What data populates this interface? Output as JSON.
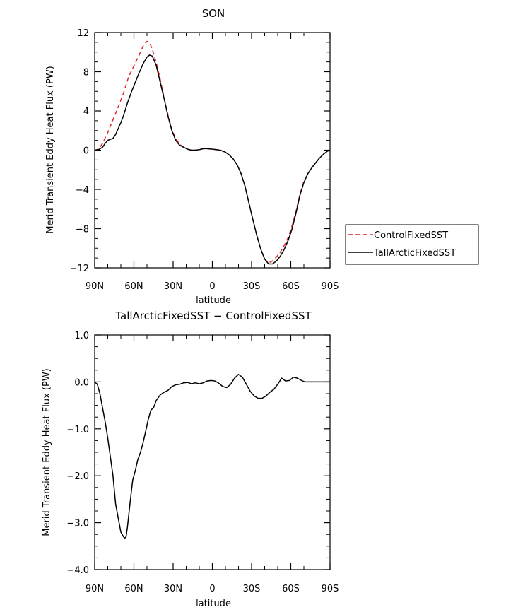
{
  "chart_data": [
    {
      "type": "line",
      "title": "SON",
      "xlabel": "latitude",
      "ylabel": "Merid Transient Eddy Heat Flux (PW)",
      "xlim": [
        90,
        -90
      ],
      "ylim": [
        -12,
        12
      ],
      "x_ticks": [
        90,
        60,
        30,
        0,
        -30,
        -60,
        -90
      ],
      "x_tick_labels": [
        "90N",
        "60N",
        "30N",
        "0",
        "30S",
        "60S",
        "90S"
      ],
      "y_ticks": [
        -12,
        -8,
        -4,
        0,
        4,
        8,
        12
      ],
      "y_tick_labels": [
        "−12",
        "−8",
        "−4",
        "0",
        "4",
        "8",
        "12"
      ],
      "legend": "outside-right",
      "series": [
        {
          "name": "ControlFixedSST",
          "color": "#e0252a",
          "dash": "dashed",
          "x": [
            90,
            87,
            84,
            80,
            76,
            72,
            68,
            64,
            60,
            56,
            53,
            50,
            48,
            46,
            43,
            40,
            37,
            34,
            31,
            28,
            25,
            22,
            19,
            16,
            13,
            10,
            7,
            4,
            0,
            -3,
            -6,
            -10,
            -13,
            -16,
            -19,
            -22,
            -25,
            -28,
            -31,
            -34,
            -37,
            -40,
            -43,
            -46,
            -49,
            -52,
            -55,
            -58,
            -61,
            -64,
            -67,
            -70,
            -73,
            -76,
            -79,
            -82,
            -85,
            -88,
            -90
          ],
          "values": [
            0.0,
            0.1,
            0.7,
            1.8,
            3.1,
            4.4,
            5.8,
            7.5,
            8.6,
            9.7,
            10.6,
            11.1,
            11.0,
            10.3,
            9.0,
            7.3,
            5.4,
            3.6,
            2.1,
            1.2,
            0.6,
            0.3,
            0.1,
            0.0,
            0.0,
            0.05,
            0.15,
            0.15,
            0.1,
            0.05,
            0.0,
            -0.2,
            -0.5,
            -0.9,
            -1.5,
            -2.4,
            -3.7,
            -5.4,
            -7.1,
            -8.7,
            -10.1,
            -11.1,
            -11.5,
            -11.3,
            -10.9,
            -10.4,
            -9.7,
            -8.9,
            -7.7,
            -6.2,
            -4.5,
            -3.2,
            -2.4,
            -1.8,
            -1.3,
            -0.8,
            -0.4,
            -0.1,
            0.0
          ]
        },
        {
          "name": "TallArcticFixedSST",
          "color": "#000000",
          "dash": "solid",
          "x": [
            90,
            87,
            84,
            82,
            80,
            78,
            76,
            74,
            72,
            70,
            68,
            65,
            62,
            59,
            56,
            53,
            50,
            48,
            46,
            43,
            40,
            37,
            34,
            31,
            28,
            25,
            22,
            19,
            16,
            13,
            10,
            7,
            4,
            0,
            -3,
            -6,
            -10,
            -13,
            -16,
            -19,
            -22,
            -25,
            -28,
            -31,
            -34,
            -37,
            -40,
            -43,
            -46,
            -49,
            -52,
            -55,
            -58,
            -61,
            -64,
            -67,
            -70,
            -73,
            -76,
            -79,
            -82,
            -85,
            -88,
            -90
          ],
          "values": [
            0.0,
            0.05,
            0.3,
            0.7,
            1.0,
            1.1,
            1.2,
            1.6,
            2.2,
            2.8,
            3.5,
            4.8,
            5.9,
            6.9,
            7.9,
            8.8,
            9.5,
            9.7,
            9.6,
            8.7,
            7.0,
            5.3,
            3.5,
            2.0,
            1.0,
            0.5,
            0.3,
            0.1,
            0.0,
            0.0,
            0.05,
            0.15,
            0.15,
            0.1,
            0.05,
            0.0,
            -0.2,
            -0.5,
            -0.9,
            -1.5,
            -2.4,
            -3.7,
            -5.4,
            -7.1,
            -8.7,
            -10.1,
            -11.1,
            -11.6,
            -11.6,
            -11.3,
            -10.8,
            -10.1,
            -9.2,
            -8.0,
            -6.4,
            -4.6,
            -3.3,
            -2.4,
            -1.8,
            -1.3,
            -0.8,
            -0.4,
            -0.1,
            0.0
          ]
        }
      ]
    },
    {
      "type": "line",
      "title": "TallArcticFixedSST − ControlFixedSST",
      "xlabel": "latitude",
      "ylabel": "Merid Transient Eddy Heat Flux (PW)",
      "xlim": [
        90,
        -90
      ],
      "ylim": [
        -4.0,
        1.0
      ],
      "x_ticks": [
        90,
        60,
        30,
        0,
        -30,
        -60,
        -90
      ],
      "x_tick_labels": [
        "90N",
        "60N",
        "30N",
        "0",
        "30S",
        "60S",
        "90S"
      ],
      "y_ticks": [
        -4.0,
        -3.0,
        -2.0,
        -1.0,
        0.0,
        1.0
      ],
      "y_tick_labels": [
        "−4.0",
        "−3.0",
        "−2.0",
        "−1.0",
        "0.0",
        "1.0"
      ],
      "series": [
        {
          "color": "#000000",
          "dash": "solid",
          "x": [
            90,
            88,
            86,
            84,
            82,
            80,
            78,
            76,
            74,
            72,
            70,
            68,
            67,
            66,
            65,
            63,
            61,
            59,
            57,
            55,
            53,
            51,
            49,
            47,
            45,
            43,
            40,
            37,
            34,
            31,
            28,
            25,
            22,
            19,
            16,
            13,
            10,
            7,
            4,
            1,
            -2,
            -5,
            -8,
            -11,
            -14,
            -17,
            -20,
            -23,
            -26,
            -29,
            -32,
            -35,
            -38,
            -41,
            -44,
            -47,
            -50,
            -53,
            -56,
            -59,
            -62,
            -65,
            -67,
            -69,
            -71,
            -73,
            -75,
            -77,
            -79,
            -81,
            -83,
            -85,
            -87,
            -90
          ],
          "values": [
            0.0,
            -0.05,
            -0.25,
            -0.55,
            -0.85,
            -1.2,
            -1.6,
            -2.0,
            -2.6,
            -2.9,
            -3.2,
            -3.3,
            -3.33,
            -3.3,
            -3.1,
            -2.6,
            -2.1,
            -1.9,
            -1.65,
            -1.5,
            -1.3,
            -1.05,
            -0.8,
            -0.6,
            -0.55,
            -0.4,
            -0.28,
            -0.22,
            -0.18,
            -0.1,
            -0.06,
            -0.05,
            -0.02,
            -0.01,
            -0.04,
            -0.02,
            -0.04,
            -0.02,
            0.02,
            0.03,
            0.02,
            -0.03,
            -0.1,
            -0.12,
            -0.05,
            0.08,
            0.16,
            0.1,
            -0.05,
            -0.2,
            -0.3,
            -0.35,
            -0.35,
            -0.3,
            -0.22,
            -0.16,
            -0.05,
            0.08,
            0.02,
            0.03,
            0.1,
            0.08,
            0.05,
            0.02,
            0.0,
            0.0,
            0.0,
            0.0,
            0.0,
            0.0,
            0.0,
            0.0,
            0.0,
            0.0
          ]
        }
      ]
    }
  ]
}
